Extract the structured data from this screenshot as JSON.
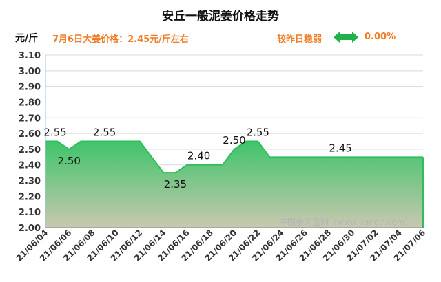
{
  "header": {
    "title": "安丘一般泥姜价格走势",
    "unit": "元/斤",
    "price_note": "7月6日大姜价格：2.45元/斤左右",
    "compare_label": "较昨日稳弱",
    "change_value": "0.00%"
  },
  "watermark": "中国姜网监制（www.jiang7.com）",
  "colors": {
    "accent": "#f07c24",
    "line": "#2fbf5a",
    "fill_top": "#3fc46a",
    "fill_bottom": "#c8c8b0",
    "arrow": "#22b04b"
  },
  "chart_data": {
    "type": "area",
    "title": "安丘一般泥姜价格走势",
    "ylabel": "元/斤",
    "xlabel": "",
    "ylim": [
      2.0,
      3.1
    ],
    "yticks": [
      "2.00",
      "2.10",
      "2.20",
      "2.30",
      "2.40",
      "2.50",
      "2.60",
      "2.70",
      "2.80",
      "2.90",
      "3.00",
      "3.10"
    ],
    "xticks": [
      "21/06/04",
      "21/06/06",
      "21/06/08",
      "21/06/10",
      "21/06/12",
      "21/06/14",
      "21/06/16",
      "21/06/18",
      "21/06/20",
      "21/06/22",
      "21/06/24",
      "21/06/26",
      "21/06/28",
      "21/06/30",
      "21/07/02",
      "21/07/04",
      "21/07/06"
    ],
    "x": [
      "21/06/04",
      "21/06/05",
      "21/06/06",
      "21/06/07",
      "21/06/08",
      "21/06/09",
      "21/06/10",
      "21/06/11",
      "21/06/12",
      "21/06/13",
      "21/06/14",
      "21/06/15",
      "21/06/16",
      "21/06/17",
      "21/06/18",
      "21/06/19",
      "21/06/20",
      "21/06/21",
      "21/06/22",
      "21/06/23",
      "21/06/24",
      "21/06/25",
      "21/06/26",
      "21/06/27",
      "21/06/28",
      "21/06/29",
      "21/06/30",
      "21/07/01",
      "21/07/02",
      "21/07/03",
      "21/07/04",
      "21/07/05",
      "21/07/06"
    ],
    "values": [
      2.55,
      2.55,
      2.5,
      2.55,
      2.55,
      2.55,
      2.55,
      2.55,
      2.55,
      2.45,
      2.35,
      2.35,
      2.4,
      2.4,
      2.4,
      2.4,
      2.5,
      2.55,
      2.55,
      2.45,
      2.45,
      2.45,
      2.45,
      2.45,
      2.45,
      2.45,
      2.45,
      2.45,
      2.45,
      2.45,
      2.45,
      2.45,
      2.45
    ],
    "data_labels": [
      {
        "x": "21/06/04",
        "text": "2.55"
      },
      {
        "x": "21/06/06",
        "text": "2.50"
      },
      {
        "x": "21/06/09",
        "text": "2.55"
      },
      {
        "x": "21/06/15",
        "text": "2.35"
      },
      {
        "x": "21/06/17",
        "text": "2.40"
      },
      {
        "x": "21/06/20",
        "text": "2.50"
      },
      {
        "x": "21/06/22",
        "text": "2.55"
      },
      {
        "x": "21/06/29",
        "text": "2.45"
      }
    ],
    "grid": true,
    "legend": "none"
  }
}
